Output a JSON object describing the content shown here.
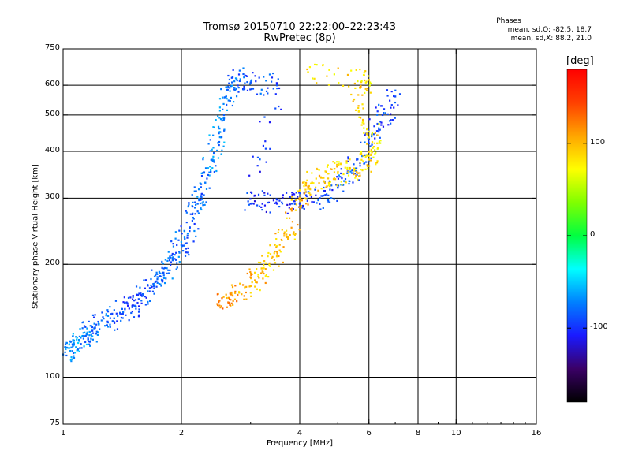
{
  "header": {
    "title": "Tromsø 20150710 22:22:00–22:23:43",
    "subtitle": "RwPretec (8p)",
    "stats_heading": "Phases",
    "stats_o": "mean, sd,O: -82.5, 18.7",
    "stats_x": "mean, sd,X: 88.2, 21.0"
  },
  "colorbar": {
    "title": "[deg]",
    "ticks": [
      {
        "value": 100,
        "label": "100"
      },
      {
        "value": 0,
        "label": "0"
      },
      {
        "value": -100,
        "label": "-100"
      }
    ],
    "range": [
      -180,
      180
    ],
    "colors": [
      "#000000",
      "#3a0066",
      "#1a1aff",
      "#0080ff",
      "#00ffff",
      "#00ff40",
      "#80ff00",
      "#ffff00",
      "#ffa500",
      "#ff4000",
      "#ff0000"
    ]
  },
  "chart_data": {
    "type": "scatter",
    "title": "Tromsø 20150710 22:22:00–22:23:43",
    "subtitle": "RwPretec (8p)",
    "xlabel": "Frequency [MHz]",
    "ylabel": "Stationary phase Virtual Height [km]",
    "x_scale": "log",
    "y_scale": "log",
    "xlim": [
      1,
      16
    ],
    "ylim": [
      75,
      750
    ],
    "x_ticks": [
      {
        "value": 1,
        "label": "1"
      },
      {
        "value": 2,
        "label": "2"
      },
      {
        "value": 4,
        "label": "4"
      },
      {
        "value": 6,
        "label": "6"
      },
      {
        "value": 8,
        "label": "8"
      },
      {
        "value": 10,
        "label": "10"
      },
      {
        "value": 16,
        "label": "16"
      }
    ],
    "y_ticks": [
      {
        "value": 75,
        "label": "75"
      },
      {
        "value": 100,
        "label": "100"
      },
      {
        "value": 200,
        "label": "200"
      },
      {
        "value": 300,
        "label": "300"
      },
      {
        "value": 400,
        "label": "400"
      },
      {
        "value": 500,
        "label": "500"
      },
      {
        "value": 600,
        "label": "600"
      },
      {
        "value": 750,
        "label": "750"
      }
    ],
    "grid_x": [
      2,
      4,
      6,
      8,
      10
    ],
    "grid_y": [
      100,
      200,
      300,
      400,
      500,
      600
    ],
    "grid": true,
    "color_by": "phase_deg",
    "series": [
      {
        "name": "O",
        "mean_phase": -82.5,
        "sd_phase": 18.7,
        "points": [
          [
            1.0,
            115,
            -75
          ],
          [
            1.05,
            120,
            -70
          ],
          [
            1.1,
            125,
            -65
          ],
          [
            1.15,
            130,
            -75
          ],
          [
            1.2,
            135,
            -80
          ],
          [
            1.3,
            140,
            -85
          ],
          [
            1.4,
            148,
            -90
          ],
          [
            1.5,
            155,
            -95
          ],
          [
            1.6,
            165,
            -90
          ],
          [
            1.7,
            175,
            -85
          ],
          [
            1.8,
            190,
            -80
          ],
          [
            1.9,
            205,
            -80
          ],
          [
            2.0,
            225,
            -80
          ],
          [
            2.1,
            250,
            -85
          ],
          [
            2.2,
            290,
            -80
          ],
          [
            2.3,
            330,
            -75
          ],
          [
            2.4,
            380,
            -70
          ],
          [
            2.5,
            460,
            -70
          ],
          [
            2.6,
            560,
            -75
          ],
          [
            2.7,
            630,
            -80
          ],
          [
            3.0,
            610,
            -90
          ],
          [
            3.5,
            600,
            -90
          ],
          [
            3.0,
            290,
            -100
          ],
          [
            3.5,
            290,
            -105
          ],
          [
            4.0,
            290,
            -100
          ],
          [
            4.5,
            300,
            -95
          ],
          [
            5.0,
            320,
            -90
          ],
          [
            5.5,
            360,
            -85
          ],
          [
            6.0,
            420,
            -90
          ],
          [
            6.5,
            500,
            -95
          ],
          [
            7.0,
            560,
            -90
          ]
        ]
      },
      {
        "name": "X",
        "mean_phase": 88.2,
        "sd_phase": 21.0,
        "points": [
          [
            2.5,
            160,
            120
          ],
          [
            2.7,
            165,
            110
          ],
          [
            3.0,
            175,
            100
          ],
          [
            3.2,
            195,
            95
          ],
          [
            3.5,
            210,
            90
          ],
          [
            3.7,
            240,
            95
          ],
          [
            4.0,
            300,
            100
          ],
          [
            4.3,
            330,
            95
          ],
          [
            4.6,
            340,
            90
          ],
          [
            5.0,
            350,
            85
          ],
          [
            5.5,
            360,
            90
          ],
          [
            6.0,
            380,
            85
          ],
          [
            6.3,
            420,
            80
          ],
          [
            5.5,
            550,
            90
          ],
          [
            6.0,
            620,
            85
          ],
          [
            4.2,
            650,
            80
          ]
        ]
      }
    ]
  }
}
